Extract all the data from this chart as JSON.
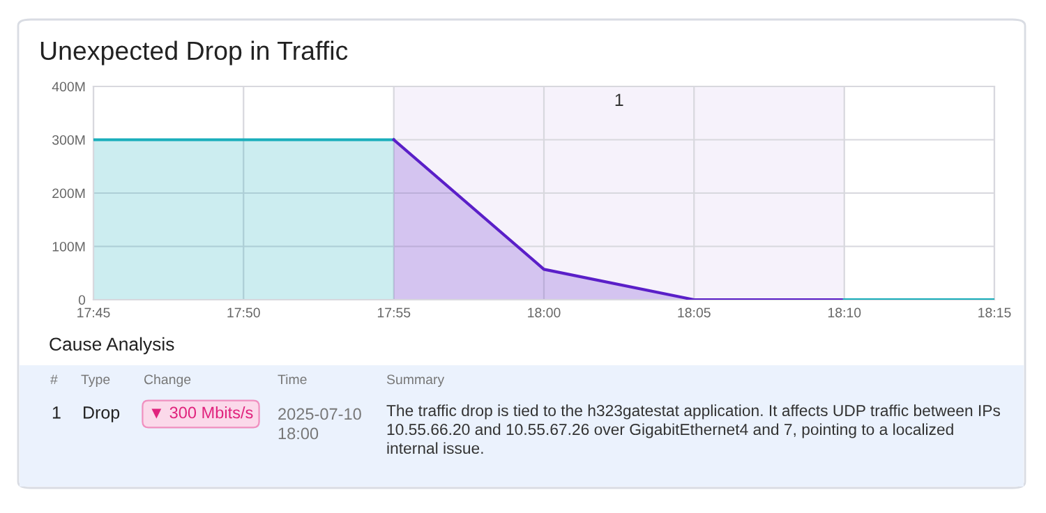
{
  "chart_data": {
    "type": "area",
    "title": "Unexpected Drop in Traffic",
    "series": [
      {
        "color": "#19aebb",
        "x": [
          17.75,
          17.9167
        ],
        "values": [
          300,
          300
        ]
      },
      {
        "color": "#5a1fc8",
        "x": [
          17.9167,
          18.0,
          18.0833,
          18.1667
        ],
        "values": [
          300,
          57,
          0,
          0
        ]
      },
      {
        "type": "line",
        "color": "#19aebb",
        "x": [
          18.1667,
          18.25
        ],
        "values": [
          0,
          0
        ]
      }
    ],
    "xlim": [
      17.75,
      18.25
    ],
    "xticks": [
      {
        "value": 17.75,
        "label": "17:45"
      },
      {
        "value": 17.8333,
        "label": "17:50"
      },
      {
        "value": 17.9167,
        "label": "17:55"
      },
      {
        "value": 18.0,
        "label": "18:00"
      },
      {
        "value": 18.0833,
        "label": "18:05"
      },
      {
        "value": 18.1667,
        "label": "18:10"
      },
      {
        "value": 18.25,
        "label": "18:15"
      }
    ],
    "ylim": [
      0,
      400
    ],
    "yticks": [
      0,
      {
        "value": 100,
        "label": "100M"
      },
      {
        "value": 200,
        "label": "200M"
      },
      {
        "value": 300,
        "label": "300M"
      },
      {
        "value": 400,
        "label": "400M"
      }
    ],
    "bands": [
      {
        "axis": "x",
        "from": 17.9167,
        "to": 18.1667,
        "label": "1",
        "color": "#f6f2fb"
      }
    ],
    "grid": true,
    "legend": false,
    "marker": "none",
    "annotations": [
      "Cause Analysis",
      "#",
      "Type",
      "Change",
      "Time",
      "Summary",
      "1",
      "Drop",
      "▼ 300 Mbits/s",
      "2025-07-10\n18:00",
      "The traffic drop is tied to the h323gatestat application. It affects UDP traffic between IPs 10.55.66.20 and 10.55.67.26 over GigabitEthernet4 and 7, pointing to a localized internal issue."
    ]
  }
}
